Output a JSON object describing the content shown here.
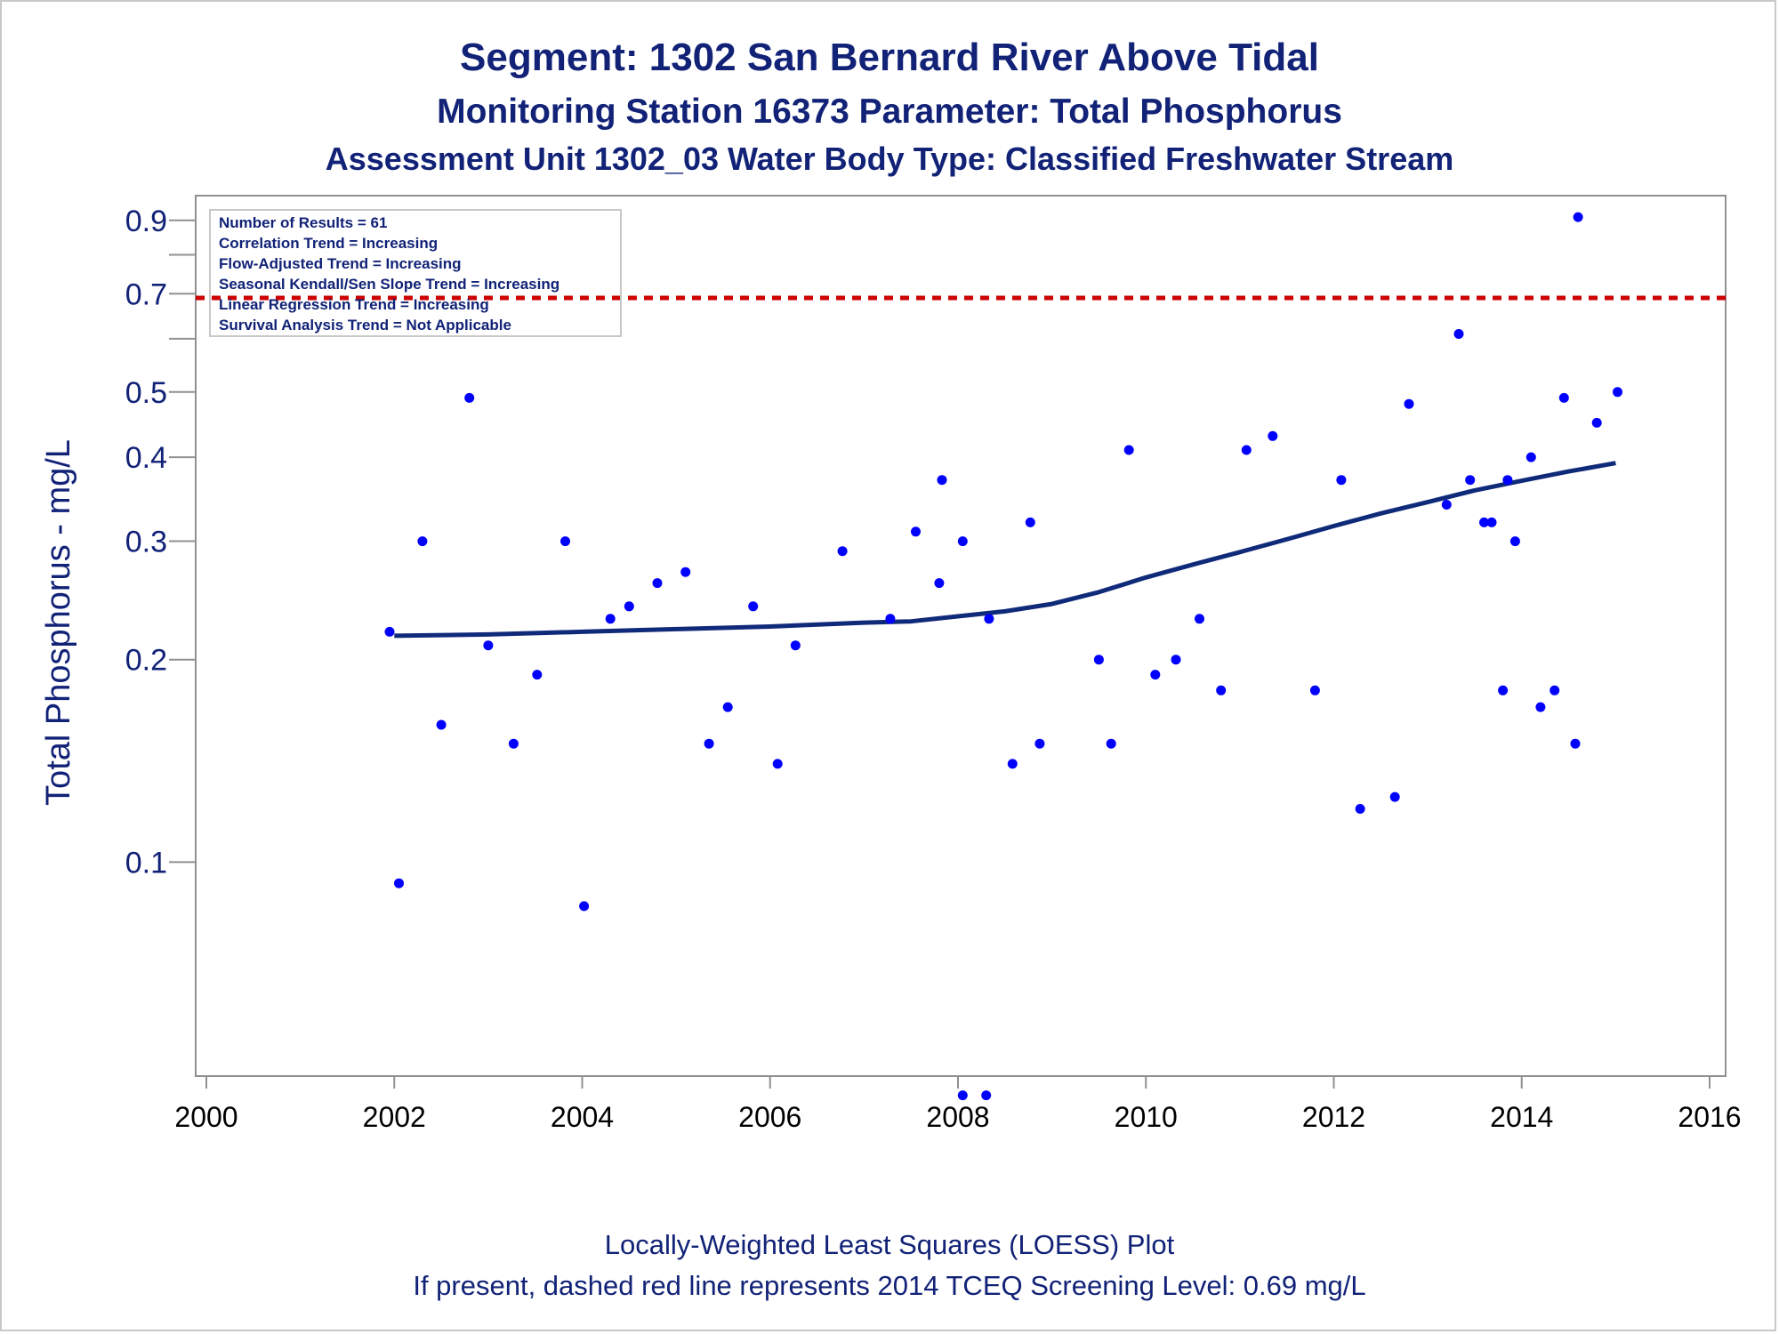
{
  "titles": {
    "line1": "Segment: 1302  San Bernard River Above Tidal",
    "line2": "Monitoring Station 16373 Parameter: Total Phosphorus",
    "line3": "Assessment Unit 1302_03   Water Body Type: Classified Freshwater Stream"
  },
  "footnotes": {
    "line1": "Locally-Weighted Least Squares (LOESS) Plot",
    "line2": "If present, dashed red line represents 2014 TCEQ Screening Level: 0.69 mg/L"
  },
  "stats_box": [
    "Number of Results = 61",
    "Correlation Trend = Increasing",
    "Flow-Adjusted Trend = Increasing",
    "Seasonal Kendall/Sen Slope Trend = Increasing",
    "Linear Regression Trend = Increasing",
    "Survival Analysis Trend = Not Applicable"
  ],
  "colors": {
    "text": "#112277",
    "points": "#0000ff",
    "trend_line": "#102a7a",
    "screening_line": "#cc0000",
    "axis": "#909090"
  },
  "chart_data": {
    "type": "scatter",
    "ylabel": "Total Phosphorus - mg/L",
    "xlabel": "",
    "y_scale": "log",
    "xlim": [
      2000,
      2016
    ],
    "ylim": [
      0.05,
      0.95
    ],
    "x_ticks": [
      2000,
      2002,
      2004,
      2006,
      2008,
      2010,
      2012,
      2014,
      2016
    ],
    "x_tick_labels": [
      "2000",
      "2002",
      "2004",
      "2006",
      "2008",
      "2010",
      "2012",
      "2014",
      "2016"
    ],
    "y_ticks": [
      0.1,
      0.2,
      0.3,
      0.4,
      0.5,
      0.6,
      0.7,
      0.8,
      0.9
    ],
    "y_tick_labels": [
      "0.1",
      "0.2",
      "0.3",
      "0.4",
      "0.5",
      "",
      "0.7",
      "",
      "0.9"
    ],
    "screening_level": 0.69,
    "series": [
      {
        "type": "scatter",
        "points": [
          [
            2001.95,
            0.22
          ],
          [
            2002.05,
            0.093
          ],
          [
            2002.3,
            0.3
          ],
          [
            2002.5,
            0.16
          ],
          [
            2002.8,
            0.49
          ],
          [
            2003.0,
            0.21
          ],
          [
            2003.27,
            0.15
          ],
          [
            2003.52,
            0.19
          ],
          [
            2003.82,
            0.3
          ],
          [
            2004.02,
            0.086
          ],
          [
            2004.3,
            0.23
          ],
          [
            2004.5,
            0.24
          ],
          [
            2004.8,
            0.26
          ],
          [
            2005.1,
            0.27
          ],
          [
            2005.35,
            0.15
          ],
          [
            2005.55,
            0.17
          ],
          [
            2005.82,
            0.24
          ],
          [
            2006.08,
            0.14
          ],
          [
            2006.27,
            0.21
          ],
          [
            2006.77,
            0.29
          ],
          [
            2007.28,
            0.23
          ],
          [
            2007.55,
            0.31
          ],
          [
            2007.8,
            0.26
          ],
          [
            2007.83,
            0.37
          ],
          [
            2008.05,
            0.045
          ],
          [
            2008.05,
            0.3
          ],
          [
            2008.3,
            0.045
          ],
          [
            2008.33,
            0.23
          ],
          [
            2008.58,
            0.14
          ],
          [
            2008.77,
            0.32
          ],
          [
            2008.87,
            0.15
          ],
          [
            2009.5,
            0.2
          ],
          [
            2009.63,
            0.15
          ],
          [
            2009.82,
            0.41
          ],
          [
            2010.1,
            0.19
          ],
          [
            2010.32,
            0.2
          ],
          [
            2010.57,
            0.23
          ],
          [
            2010.8,
            0.18
          ],
          [
            2011.07,
            0.41
          ],
          [
            2011.35,
            0.43
          ],
          [
            2011.8,
            0.18
          ],
          [
            2012.08,
            0.37
          ],
          [
            2012.28,
            0.12
          ],
          [
            2012.65,
            0.125
          ],
          [
            2012.8,
            0.48
          ],
          [
            2013.2,
            0.34
          ],
          [
            2013.33,
            0.61
          ],
          [
            2013.45,
            0.37
          ],
          [
            2013.6,
            0.32
          ],
          [
            2013.68,
            0.32
          ],
          [
            2013.8,
            0.18
          ],
          [
            2013.85,
            0.37
          ],
          [
            2013.93,
            0.3
          ],
          [
            2014.1,
            0.4
          ],
          [
            2014.2,
            0.17
          ],
          [
            2014.35,
            0.18
          ],
          [
            2014.45,
            0.49
          ],
          [
            2014.57,
            0.15
          ],
          [
            2014.6,
            0.91
          ],
          [
            2014.8,
            0.45
          ],
          [
            2015.02,
            0.5
          ]
        ]
      },
      {
        "type": "line",
        "points": [
          [
            2002.0,
            0.217
          ],
          [
            2003.0,
            0.218
          ],
          [
            2004.0,
            0.22
          ],
          [
            2005.0,
            0.222
          ],
          [
            2006.0,
            0.224
          ],
          [
            2007.0,
            0.227
          ],
          [
            2007.5,
            0.228
          ],
          [
            2008.0,
            0.232
          ],
          [
            2008.5,
            0.236
          ],
          [
            2009.0,
            0.242
          ],
          [
            2009.5,
            0.252
          ],
          [
            2010.0,
            0.265
          ],
          [
            2010.5,
            0.277
          ],
          [
            2011.0,
            0.289
          ],
          [
            2011.5,
            0.302
          ],
          [
            2012.0,
            0.316
          ],
          [
            2012.5,
            0.33
          ],
          [
            2013.0,
            0.343
          ],
          [
            2013.5,
            0.357
          ],
          [
            2014.0,
            0.369
          ],
          [
            2014.5,
            0.381
          ],
          [
            2015.0,
            0.392
          ]
        ]
      }
    ]
  }
}
